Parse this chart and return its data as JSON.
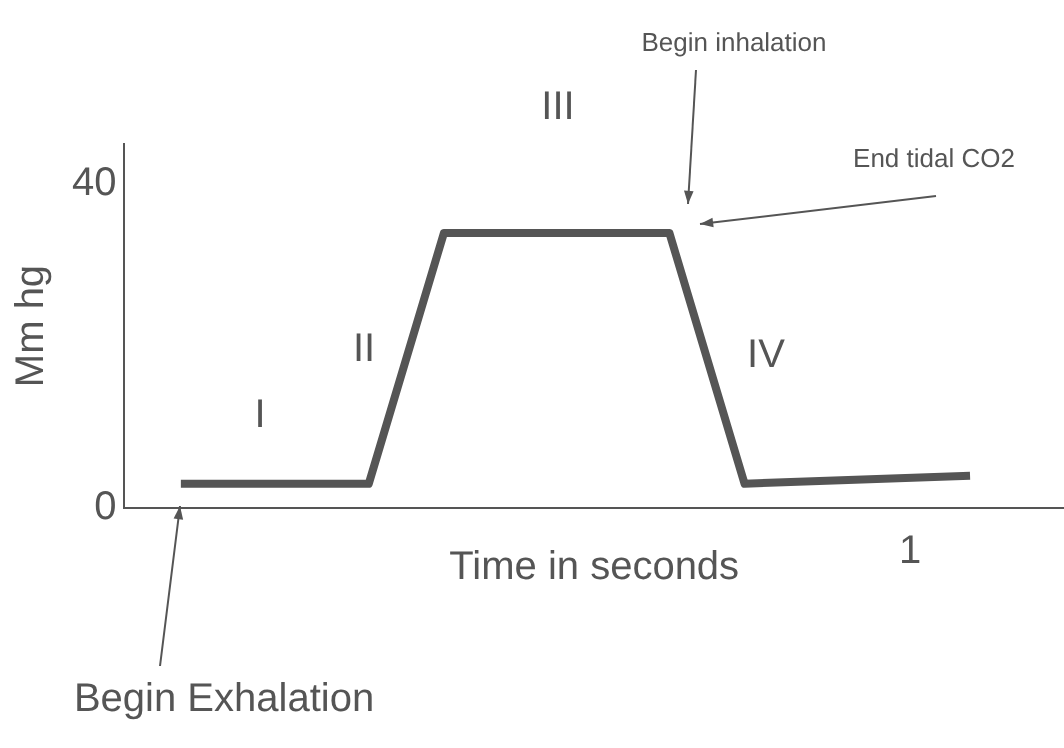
{
  "chart_data": {
    "type": "line",
    "xlabel": "Time in seconds",
    "ylabel": "Mm hg",
    "categories": [
      null,
      null,
      null,
      null,
      null,
      null,
      null,
      null,
      null,
      null,
      null,
      null,
      null,
      null,
      null,
      null,
      null,
      null,
      null,
      null,
      null,
      null,
      null,
      null,
      null
    ],
    "series": [
      {
        "color": "#555555",
        "values": [
          null,
          3,
          null,
          null,
          null,
          null,
          3,
          null,
          34,
          null,
          null,
          null,
          null,
          null,
          34,
          null,
          3,
          null,
          null,
          null,
          null,
          null,
          4,
          null,
          null
        ]
      }
    ],
    "ylim": [
      0,
      45
    ],
    "yticks": [
      0,
      40
    ],
    "grid": false,
    "legend": false,
    "marker": "none",
    "line_style": "solid",
    "annotations": [
      "I",
      "II",
      "III",
      "IV",
      "Begin inhalation",
      "End tidal CO2",
      "Begin Exhalation",
      "1"
    ]
  }
}
